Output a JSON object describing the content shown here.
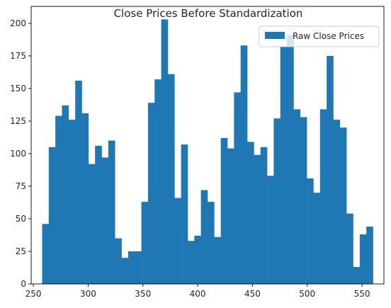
{
  "chart_data": {
    "type": "histogram",
    "title": "Close Prices Before Standardization",
    "xlabel": "",
    "ylabel": "",
    "xlim": [
      248,
      570
    ],
    "ylim": [
      0,
      213
    ],
    "x_ticks": [
      250,
      300,
      350,
      400,
      450,
      500,
      550
    ],
    "y_ticks": [
      0,
      25,
      50,
      75,
      100,
      125,
      150,
      175,
      200
    ],
    "grid": false,
    "legend_position": "upper right",
    "bin_start": 258,
    "bin_end": 560,
    "series": [
      {
        "name": "Raw Close Prices",
        "color": "#1f77b4",
        "values": [
          46,
          105,
          129,
          137,
          126,
          156,
          131,
          92,
          106,
          97,
          110,
          35,
          20,
          25,
          25,
          63,
          139,
          157,
          203,
          161,
          66,
          107,
          33,
          37,
          72,
          63,
          36,
          112,
          104,
          147,
          183,
          109,
          99,
          105,
          83,
          127,
          182,
          191,
          134,
          128,
          81,
          70,
          134,
          175,
          126,
          120,
          54,
          13,
          38,
          44
        ]
      }
    ]
  }
}
